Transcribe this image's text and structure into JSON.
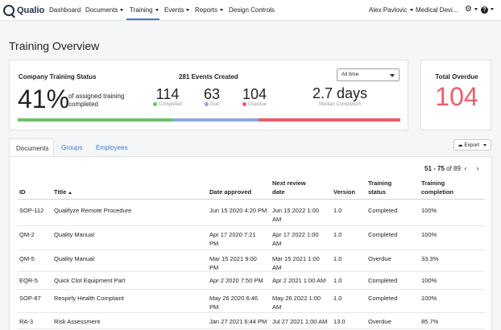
{
  "nav": {
    "logo_text": "Qualio",
    "items": [
      {
        "label": "Dashboard"
      },
      {
        "label": "Documents"
      },
      {
        "label": "Training"
      },
      {
        "label": "Events"
      },
      {
        "label": "Reports"
      },
      {
        "label": "Design Controls"
      }
    ],
    "user": "Alex Pavlovic",
    "org": "Medical Devi..."
  },
  "page": {
    "title": "Training Overview"
  },
  "status": {
    "heading": "Company Training Status",
    "events_created": "281 Events Created",
    "filter_value": "All time",
    "percent": "41%",
    "percent_label": "of assigned training completed",
    "completed": "114",
    "completed_label": "Completed",
    "due": "63",
    "due_label": "Due",
    "overdue": "104",
    "overdue_label": "Overdue",
    "median": "2.7 days",
    "median_label": "Median Completion",
    "colors": {
      "completed": "#6cc36c",
      "due": "#8aa9e6",
      "overdue": "#e8606a"
    }
  },
  "total_overdue": {
    "heading": "Total Overdue",
    "value": "104"
  },
  "tabs": [
    {
      "label": "Documents"
    },
    {
      "label": "Groups"
    },
    {
      "label": "Employees"
    }
  ],
  "export_label": "Export",
  "pager": {
    "range": "51 - 75",
    "of": "of 89"
  },
  "table": {
    "headers": {
      "id": "ID",
      "title": "Title",
      "date_approved": "Date approved",
      "next_review_1": "Next review",
      "next_review_2": "date",
      "version": "Version",
      "status_1": "Training",
      "status_2": "status",
      "completion_1": "Training",
      "completion_2": "completion"
    },
    "rows": [
      {
        "id": "SOP-112",
        "title": "Qualifyze Remote Procedure",
        "approved_1": "Jun 15 2020 4:20 PM",
        "approved_2": "",
        "review_1": "Jun 15 2022 1:00",
        "review_2": "AM",
        "version": "1.0",
        "status": "Completed",
        "completion": "100%"
      },
      {
        "id": "QM-2",
        "title": "Quality Manual",
        "approved_1": "Apr 17 2020 7:21",
        "approved_2": "PM",
        "review_1": "Apr 17 2022 1:00",
        "review_2": "AM",
        "version": "1.0",
        "status": "Completed",
        "completion": "100%"
      },
      {
        "id": "QM-5",
        "title": "Quality Manual",
        "approved_1": "Mar 15 2021 9:00",
        "approved_2": "PM",
        "review_1": "Mar 15 2021 1:00",
        "review_2": "AM",
        "version": "1.0",
        "status": "Overdue",
        "completion": "33.3%"
      },
      {
        "id": "EQR-5",
        "title": "Quick Clot Equipment Part",
        "approved_1": "Apr 2 2020 7:50 PM",
        "approved_2": "",
        "review_1": "Apr 2 2021 1:00 AM",
        "review_2": "",
        "version": "1.0",
        "status": "Completed",
        "completion": "100%"
      },
      {
        "id": "SOP-87",
        "title": "Respirly Health Complaint",
        "approved_1": "May 26 2020 6:46",
        "approved_2": "PM",
        "review_1": "May 26 2022 1:00",
        "review_2": "AM",
        "version": "1.0",
        "status": "Completed",
        "completion": "100%"
      },
      {
        "id": "RA-3",
        "title": "Risk Assessment",
        "approved_1": "Jan 27 2021 6:44 PM",
        "approved_2": "",
        "review_1": "Jul 27 2021 1:00 AM",
        "review_2": "",
        "version": "13.0",
        "status": "Overdue",
        "completion": "85.7%"
      }
    ]
  }
}
